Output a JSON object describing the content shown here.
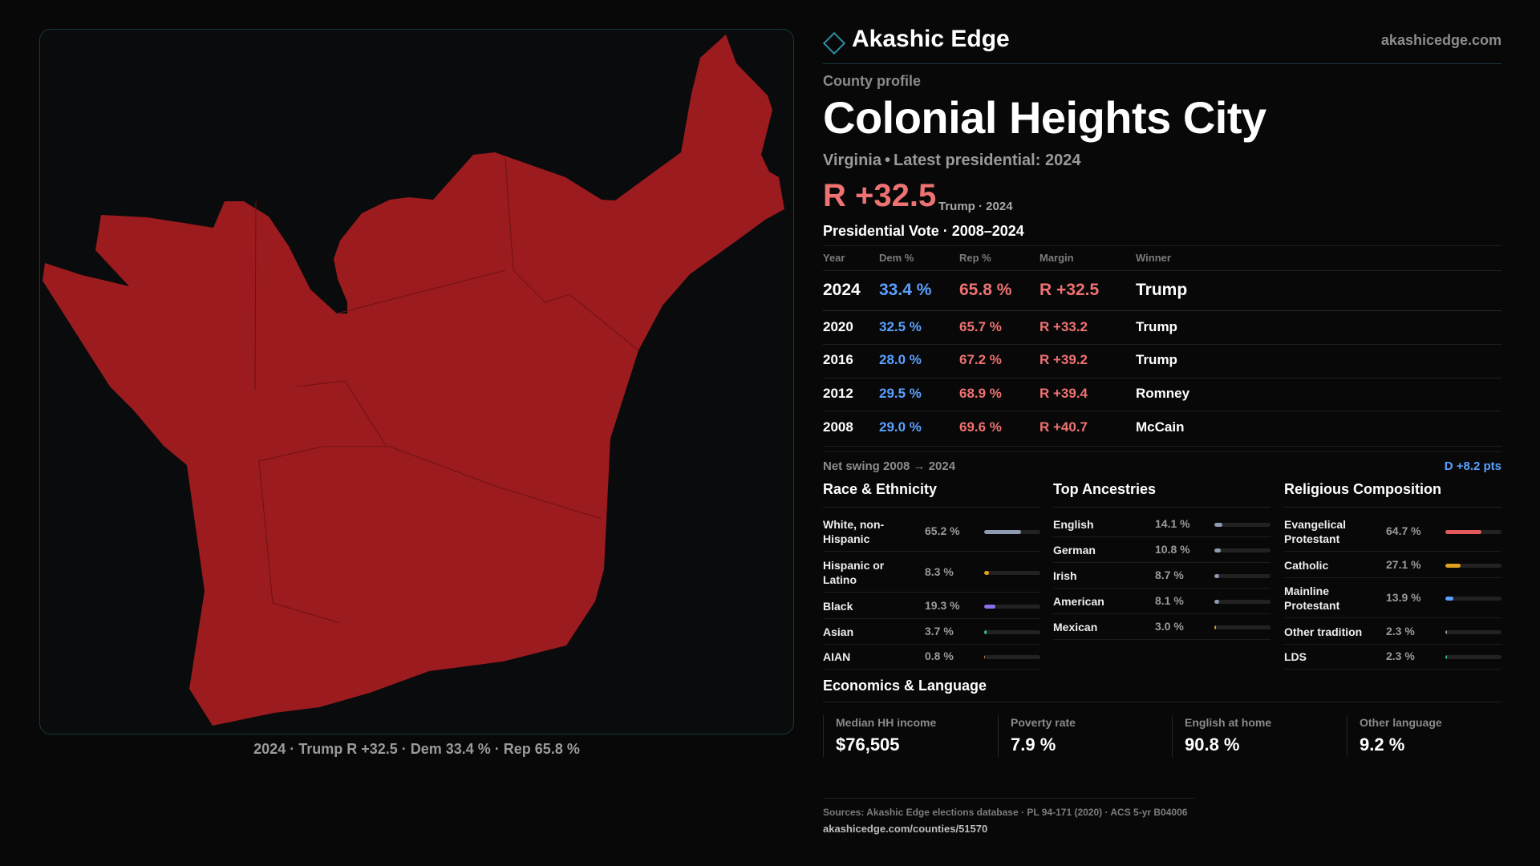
{
  "brand": {
    "name": "Akashic Edge",
    "url": "akashicedge.com",
    "accent": "#2c8fa0"
  },
  "profile": {
    "kicker": "County profile",
    "title": "Colonial Heights City",
    "state": "Virginia",
    "latest": "Latest presidential: 2024",
    "margin": "R +32.5",
    "margin_sub": "Trump · 2024"
  },
  "map": {
    "fill": "#9b1b1e",
    "caption": "2024 · Trump R +32.5 · Dem 33.4 % · Rep 65.8 %"
  },
  "votes": {
    "title": "Presidential Vote · 2008–2024",
    "headers": {
      "year": "Year",
      "dem": "Dem %",
      "rep": "Rep %",
      "margin": "Margin",
      "winner": "Winner"
    },
    "rows": [
      {
        "year": "2024",
        "dem": "33.4 %",
        "rep": "65.8 %",
        "margin": "R +32.5",
        "winner": "Trump"
      },
      {
        "year": "2020",
        "dem": "32.5 %",
        "rep": "65.7 %",
        "margin": "R +33.2",
        "winner": "Trump"
      },
      {
        "year": "2016",
        "dem": "28.0 %",
        "rep": "67.2 %",
        "margin": "R +39.2",
        "winner": "Trump"
      },
      {
        "year": "2012",
        "dem": "29.5 %",
        "rep": "68.9 %",
        "margin": "R +39.4",
        "winner": "Romney"
      },
      {
        "year": "2008",
        "dem": "29.0 %",
        "rep": "69.6 %",
        "margin": "R +40.7",
        "winner": "McCain"
      }
    ],
    "swing_label": "Net swing 2008 → 2024",
    "swing_value": "D +8.2 pts"
  },
  "race": {
    "title": "Race & Ethnicity",
    "items": [
      {
        "label": "White, non-Hispanic",
        "value": "65.2 %",
        "pct": 65.2,
        "color": "#8f9bb0"
      },
      {
        "label": "Hispanic or Latino",
        "value": "8.3 %",
        "pct": 8.3,
        "color": "#e0a020"
      },
      {
        "label": "Black",
        "value": "19.3 %",
        "pct": 19.3,
        "color": "#8b6fe8"
      },
      {
        "label": "Asian",
        "value": "3.7 %",
        "pct": 3.7,
        "color": "#2fc29a"
      },
      {
        "label": "AIAN",
        "value": "0.8 %",
        "pct": 0.8,
        "color": "#d08a4a"
      }
    ]
  },
  "ancestry": {
    "title": "Top Ancestries",
    "items": [
      {
        "label": "English",
        "value": "14.1 %",
        "pct": 14.1,
        "color": "#8f9bb0"
      },
      {
        "label": "German",
        "value": "10.8 %",
        "pct": 10.8,
        "color": "#8f9bb0"
      },
      {
        "label": "Irish",
        "value": "8.7 %",
        "pct": 8.7,
        "color": "#8f9bb0"
      },
      {
        "label": "American",
        "value": "8.1 %",
        "pct": 8.1,
        "color": "#8f9bb0"
      },
      {
        "label": "Mexican",
        "value": "3.0 %",
        "pct": 3.0,
        "color": "#e0a020"
      }
    ]
  },
  "religion": {
    "title": "Religious Composition",
    "items": [
      {
        "label": "Evangelical Protestant",
        "value": "64.7 %",
        "pct": 64.7,
        "color": "#e35a5a"
      },
      {
        "label": "Catholic",
        "value": "27.1 %",
        "pct": 27.1,
        "color": "#e0a020"
      },
      {
        "label": "Mainline Protestant",
        "value": "13.9 %",
        "pct": 13.9,
        "color": "#5aa0ff"
      },
      {
        "label": "Other tradition",
        "value": "2.3 %",
        "pct": 2.3,
        "color": "#9a9a9a"
      },
      {
        "label": "LDS",
        "value": "2.3 %",
        "pct": 2.3,
        "color": "#2fc29a"
      }
    ]
  },
  "economics": {
    "title": "Economics & Language",
    "stats": [
      {
        "label": "Median HH income",
        "value": "$76,505"
      },
      {
        "label": "Poverty rate",
        "value": "7.9 %"
      },
      {
        "label": "English at home",
        "value": "90.8 %"
      },
      {
        "label": "Other language",
        "value": "9.2 %"
      }
    ]
  },
  "footer": {
    "sources": "Sources: Akashic Edge elections database · PL 94-171 (2020) · ACS 5-yr B04006",
    "url": "akashicedge.com/counties/51570"
  }
}
